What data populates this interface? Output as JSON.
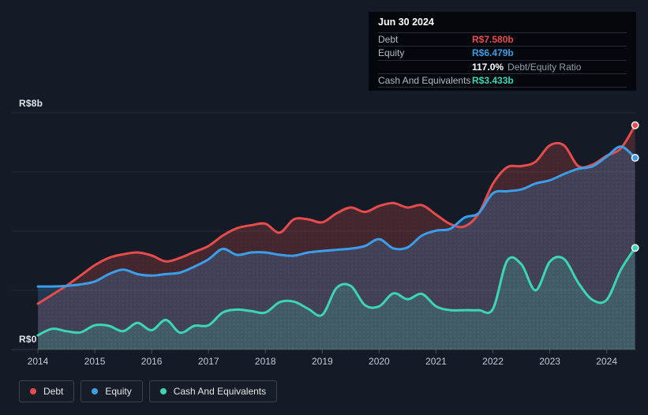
{
  "colors": {
    "debt": "#E74C4C",
    "equity": "#3B9EE8",
    "cash": "#3BD6B2",
    "background": "#151B26"
  },
  "tooltip": {
    "date": "Jun 30 2024",
    "debt_label": "Debt",
    "debt_value": "R$7.580b",
    "equity_label": "Equity",
    "equity_value": "R$6.479b",
    "ratio_value": "117.0%",
    "ratio_label": "Debt/Equity Ratio",
    "cash_label": "Cash And Equivalents",
    "cash_value": "R$3.433b"
  },
  "legend": {
    "items": [
      {
        "label": "Debt",
        "color": "#E74C4C"
      },
      {
        "label": "Equity",
        "color": "#3B9EE8"
      },
      {
        "label": "Cash And Equivalents",
        "color": "#3BD6B2"
      }
    ]
  },
  "chart_data": {
    "type": "area",
    "x_unit": "year",
    "ylim": [
      0,
      8
    ],
    "grid": true,
    "legend_position": "bottom",
    "y_axis": {
      "top_label": "R$8b",
      "bottom_label": "R$0"
    },
    "x_tick_labels": [
      "2014",
      "2015",
      "2016",
      "2017",
      "2018",
      "2019",
      "2020",
      "2021",
      "2022",
      "2023",
      "2024"
    ],
    "x": [
      2014.0,
      2014.25,
      2014.5,
      2014.75,
      2015.0,
      2015.25,
      2015.5,
      2015.75,
      2016.0,
      2016.25,
      2016.5,
      2016.75,
      2017.0,
      2017.25,
      2017.5,
      2017.75,
      2018.0,
      2018.25,
      2018.5,
      2018.75,
      2019.0,
      2019.25,
      2019.5,
      2019.75,
      2020.0,
      2020.25,
      2020.5,
      2020.75,
      2021.0,
      2021.25,
      2021.5,
      2021.75,
      2022.0,
      2022.25,
      2022.5,
      2022.75,
      2023.0,
      2023.25,
      2023.5,
      2023.75,
      2024.0,
      2024.25,
      2024.5
    ],
    "series": [
      {
        "name": "Debt",
        "color": "#E74C4C",
        "fill": "rgba(231,76,76,0.22)",
        "values": [
          1.55,
          1.85,
          2.15,
          2.5,
          2.85,
          3.1,
          3.22,
          3.28,
          3.18,
          2.98,
          3.1,
          3.3,
          3.5,
          3.85,
          4.1,
          4.2,
          4.25,
          3.95,
          4.4,
          4.4,
          4.3,
          4.6,
          4.8,
          4.65,
          4.85,
          4.95,
          4.8,
          4.88,
          4.56,
          4.24,
          4.16,
          4.6,
          5.6,
          6.16,
          6.2,
          6.35,
          6.9,
          6.9,
          6.2,
          6.25,
          6.55,
          6.8,
          7.58
        ]
      },
      {
        "name": "Equity",
        "color": "#3B9EE8",
        "fill": "rgba(59,158,232,0.22)",
        "values": [
          2.13,
          2.13,
          2.15,
          2.2,
          2.3,
          2.55,
          2.7,
          2.55,
          2.5,
          2.55,
          2.6,
          2.8,
          3.05,
          3.4,
          3.2,
          3.28,
          3.28,
          3.2,
          3.17,
          3.28,
          3.33,
          3.37,
          3.41,
          3.5,
          3.73,
          3.42,
          3.45,
          3.85,
          4.02,
          4.08,
          4.46,
          4.61,
          5.28,
          5.35,
          5.41,
          5.61,
          5.72,
          5.93,
          6.11,
          6.19,
          6.52,
          6.86,
          6.479
        ]
      },
      {
        "name": "Cash And Equivalents",
        "color": "#3BD6B2",
        "fill": "rgba(65,214,180,0.18)",
        "values": [
          0.48,
          0.7,
          0.62,
          0.58,
          0.82,
          0.8,
          0.62,
          0.9,
          0.65,
          1.0,
          0.57,
          0.8,
          0.82,
          1.25,
          1.35,
          1.3,
          1.25,
          1.6,
          1.62,
          1.38,
          1.17,
          2.08,
          2.15,
          1.5,
          1.46,
          1.9,
          1.7,
          1.88,
          1.46,
          1.33,
          1.33,
          1.33,
          1.37,
          3.0,
          2.88,
          2.0,
          2.97,
          3.06,
          2.26,
          1.68,
          1.68,
          2.7,
          3.433
        ]
      }
    ]
  }
}
